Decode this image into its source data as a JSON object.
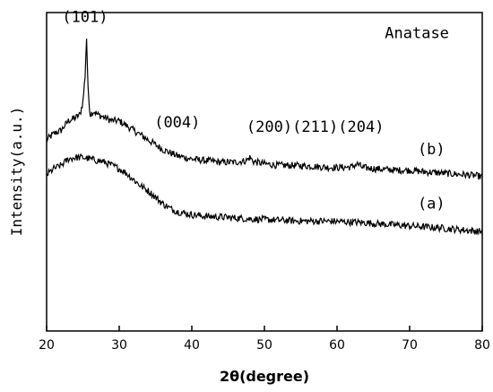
{
  "chart_data": {
    "type": "line",
    "xlabel": "2θ(degree)",
    "ylabel": "Intensity(a.u.)",
    "xlim": [
      20,
      80
    ],
    "xticks": [
      20,
      30,
      40,
      50,
      60,
      70,
      80
    ],
    "yticks_shown": false,
    "grid": false,
    "units": "arbitrary",
    "series": [
      {
        "name": "(b)",
        "x": [
          20,
          21,
          22,
          23,
          24,
          24.6,
          25.0,
          25.3,
          25.5,
          25.7,
          26.0,
          26.5,
          27,
          28,
          29,
          30,
          31,
          32,
          33,
          34,
          35,
          36,
          37,
          38,
          39,
          40,
          42,
          44,
          46,
          47.5,
          48.0,
          48.5,
          50,
          52,
          54,
          56,
          58,
          60,
          62,
          62.8,
          63.5,
          65,
          68,
          70,
          72,
          75,
          78,
          80
        ],
        "y": [
          0.6,
          0.62,
          0.63,
          0.66,
          0.67,
          0.68,
          0.72,
          0.8,
          0.92,
          0.76,
          0.68,
          0.69,
          0.68,
          0.67,
          0.66,
          0.66,
          0.645,
          0.63,
          0.615,
          0.6,
          0.585,
          0.57,
          0.56,
          0.55,
          0.545,
          0.54,
          0.535,
          0.53,
          0.53,
          0.535,
          0.545,
          0.532,
          0.525,
          0.52,
          0.52,
          0.518,
          0.515,
          0.513,
          0.515,
          0.525,
          0.513,
          0.51,
          0.505,
          0.505,
          0.5,
          0.495,
          0.49,
          0.485
        ]
      },
      {
        "name": "(a)",
        "x": [
          20,
          21,
          22,
          23,
          24,
          25,
          26,
          27,
          28,
          29,
          30,
          31,
          32,
          33,
          34,
          35,
          36,
          37,
          38,
          39,
          40,
          42,
          44,
          46,
          48,
          50,
          52,
          54,
          56,
          58,
          60,
          62,
          64,
          66,
          68,
          70,
          72,
          74,
          76,
          78,
          80
        ],
        "y": [
          0.49,
          0.51,
          0.52,
          0.54,
          0.545,
          0.545,
          0.54,
          0.535,
          0.53,
          0.52,
          0.51,
          0.495,
          0.475,
          0.455,
          0.44,
          0.42,
          0.4,
          0.385,
          0.375,
          0.37,
          0.365,
          0.36,
          0.358,
          0.355,
          0.352,
          0.35,
          0.348,
          0.346,
          0.345,
          0.345,
          0.344,
          0.342,
          0.34,
          0.336,
          0.333,
          0.33,
          0.327,
          0.324,
          0.32,
          0.316,
          0.312
        ]
      }
    ],
    "annotations": [
      {
        "text": "(101)",
        "x": 25.3,
        "y": 0.97
      },
      {
        "text": "Anatase",
        "x": 71,
        "y": 0.92
      },
      {
        "text": "(004)",
        "x": 38,
        "y": 0.64
      },
      {
        "text": "(200)(211)(204)",
        "x": 57,
        "y": 0.625
      },
      {
        "text": "(b)",
        "x": 73,
        "y": 0.555
      },
      {
        "text": "(a)",
        "x": 73,
        "y": 0.385
      }
    ]
  }
}
